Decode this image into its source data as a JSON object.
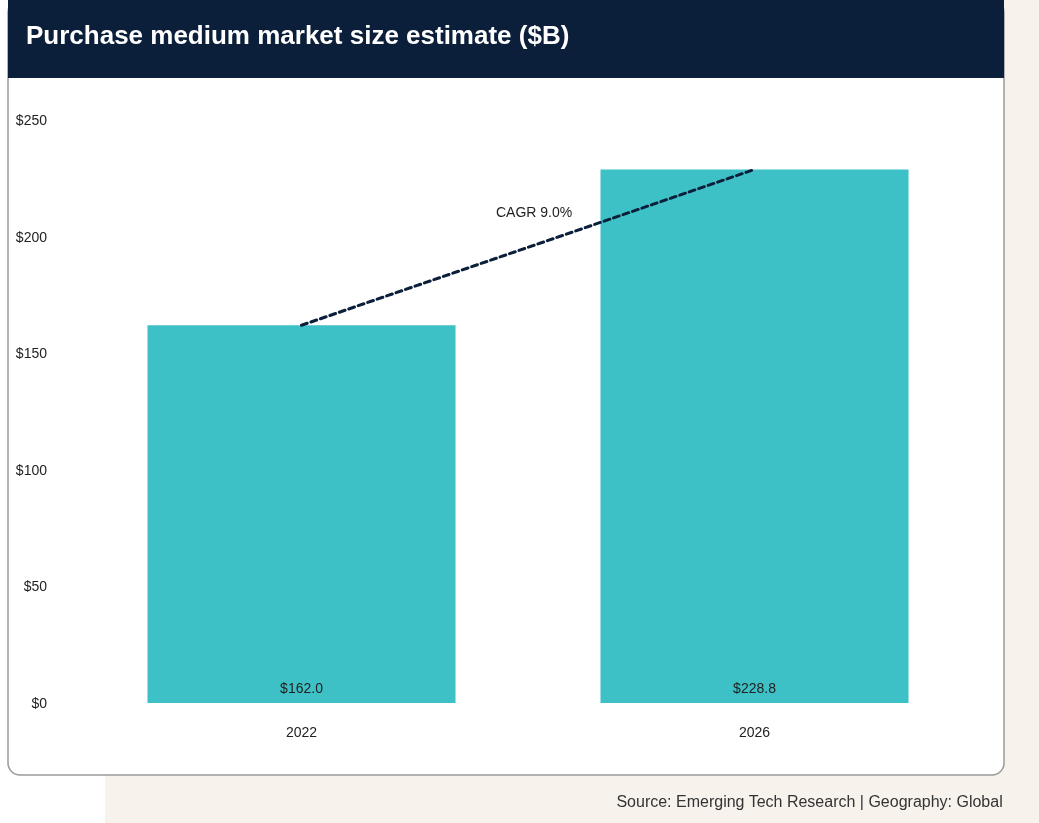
{
  "chart_data": {
    "type": "bar",
    "title": "Purchase medium market size estimate ($B)",
    "categories": [
      "2022",
      "2026"
    ],
    "series": [
      {
        "color": "#3ec1c6",
        "values": [
          162.0,
          228.8
        ],
        "value_labels": [
          "$162.0",
          "$228.8"
        ]
      },
      {
        "type": "line",
        "color": "#0b1f3a",
        "values": [
          162.0,
          228.8
        ],
        "line_style": "dashed",
        "marker": "none"
      }
    ],
    "ylim": [
      0,
      250
    ],
    "yticks": [
      {
        "value": 0,
        "label": "$0"
      },
      {
        "value": 50,
        "label": "$50"
      },
      {
        "value": 100,
        "label": "$100"
      },
      {
        "value": 150,
        "label": "$150"
      },
      {
        "value": 200,
        "label": "$200"
      },
      {
        "value": 250,
        "label": "$250"
      }
    ],
    "grid": false,
    "annotations": [
      "CAGR 9.0%",
      "Source: Emerging Tech Research | Geography: Global"
    ]
  }
}
